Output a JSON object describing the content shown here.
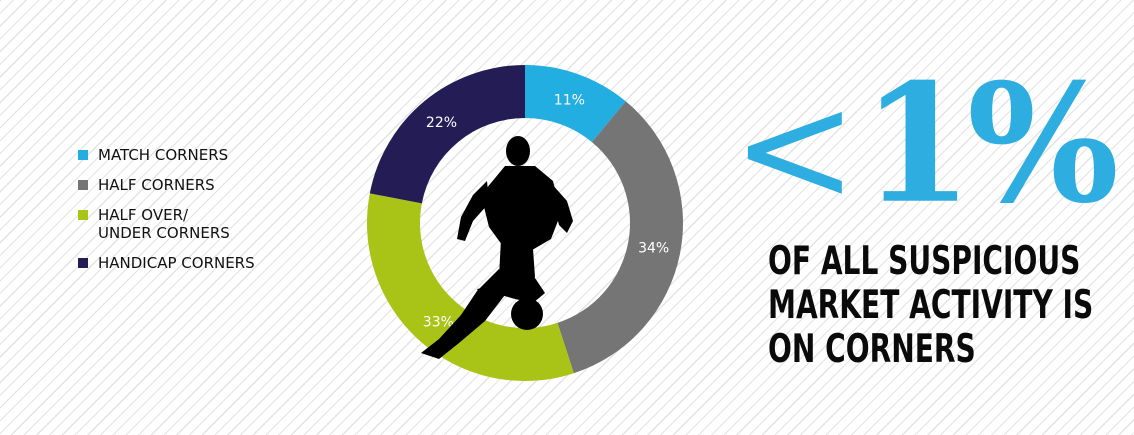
{
  "chart_data": {
    "type": "pie",
    "categories": [
      "MATCH CORNERS",
      "HALF CORNERS",
      "HALF OVER/\nUNDER CORNERS",
      "HANDICAP CORNERS"
    ],
    "values": [
      11,
      34,
      33,
      22
    ],
    "value_labels": [
      "11%",
      "34%",
      "33%",
      "22%"
    ],
    "colors": [
      "#22aee0",
      "#757575",
      "#a9c416",
      "#241d55"
    ],
    "style": "donut",
    "legend_position": "left"
  },
  "headline": {
    "lt": "<",
    "number": "1%",
    "text": "OF ALL SUSPICIOUS\nMARKET ACTIVITY IS\nON CORNERS"
  }
}
